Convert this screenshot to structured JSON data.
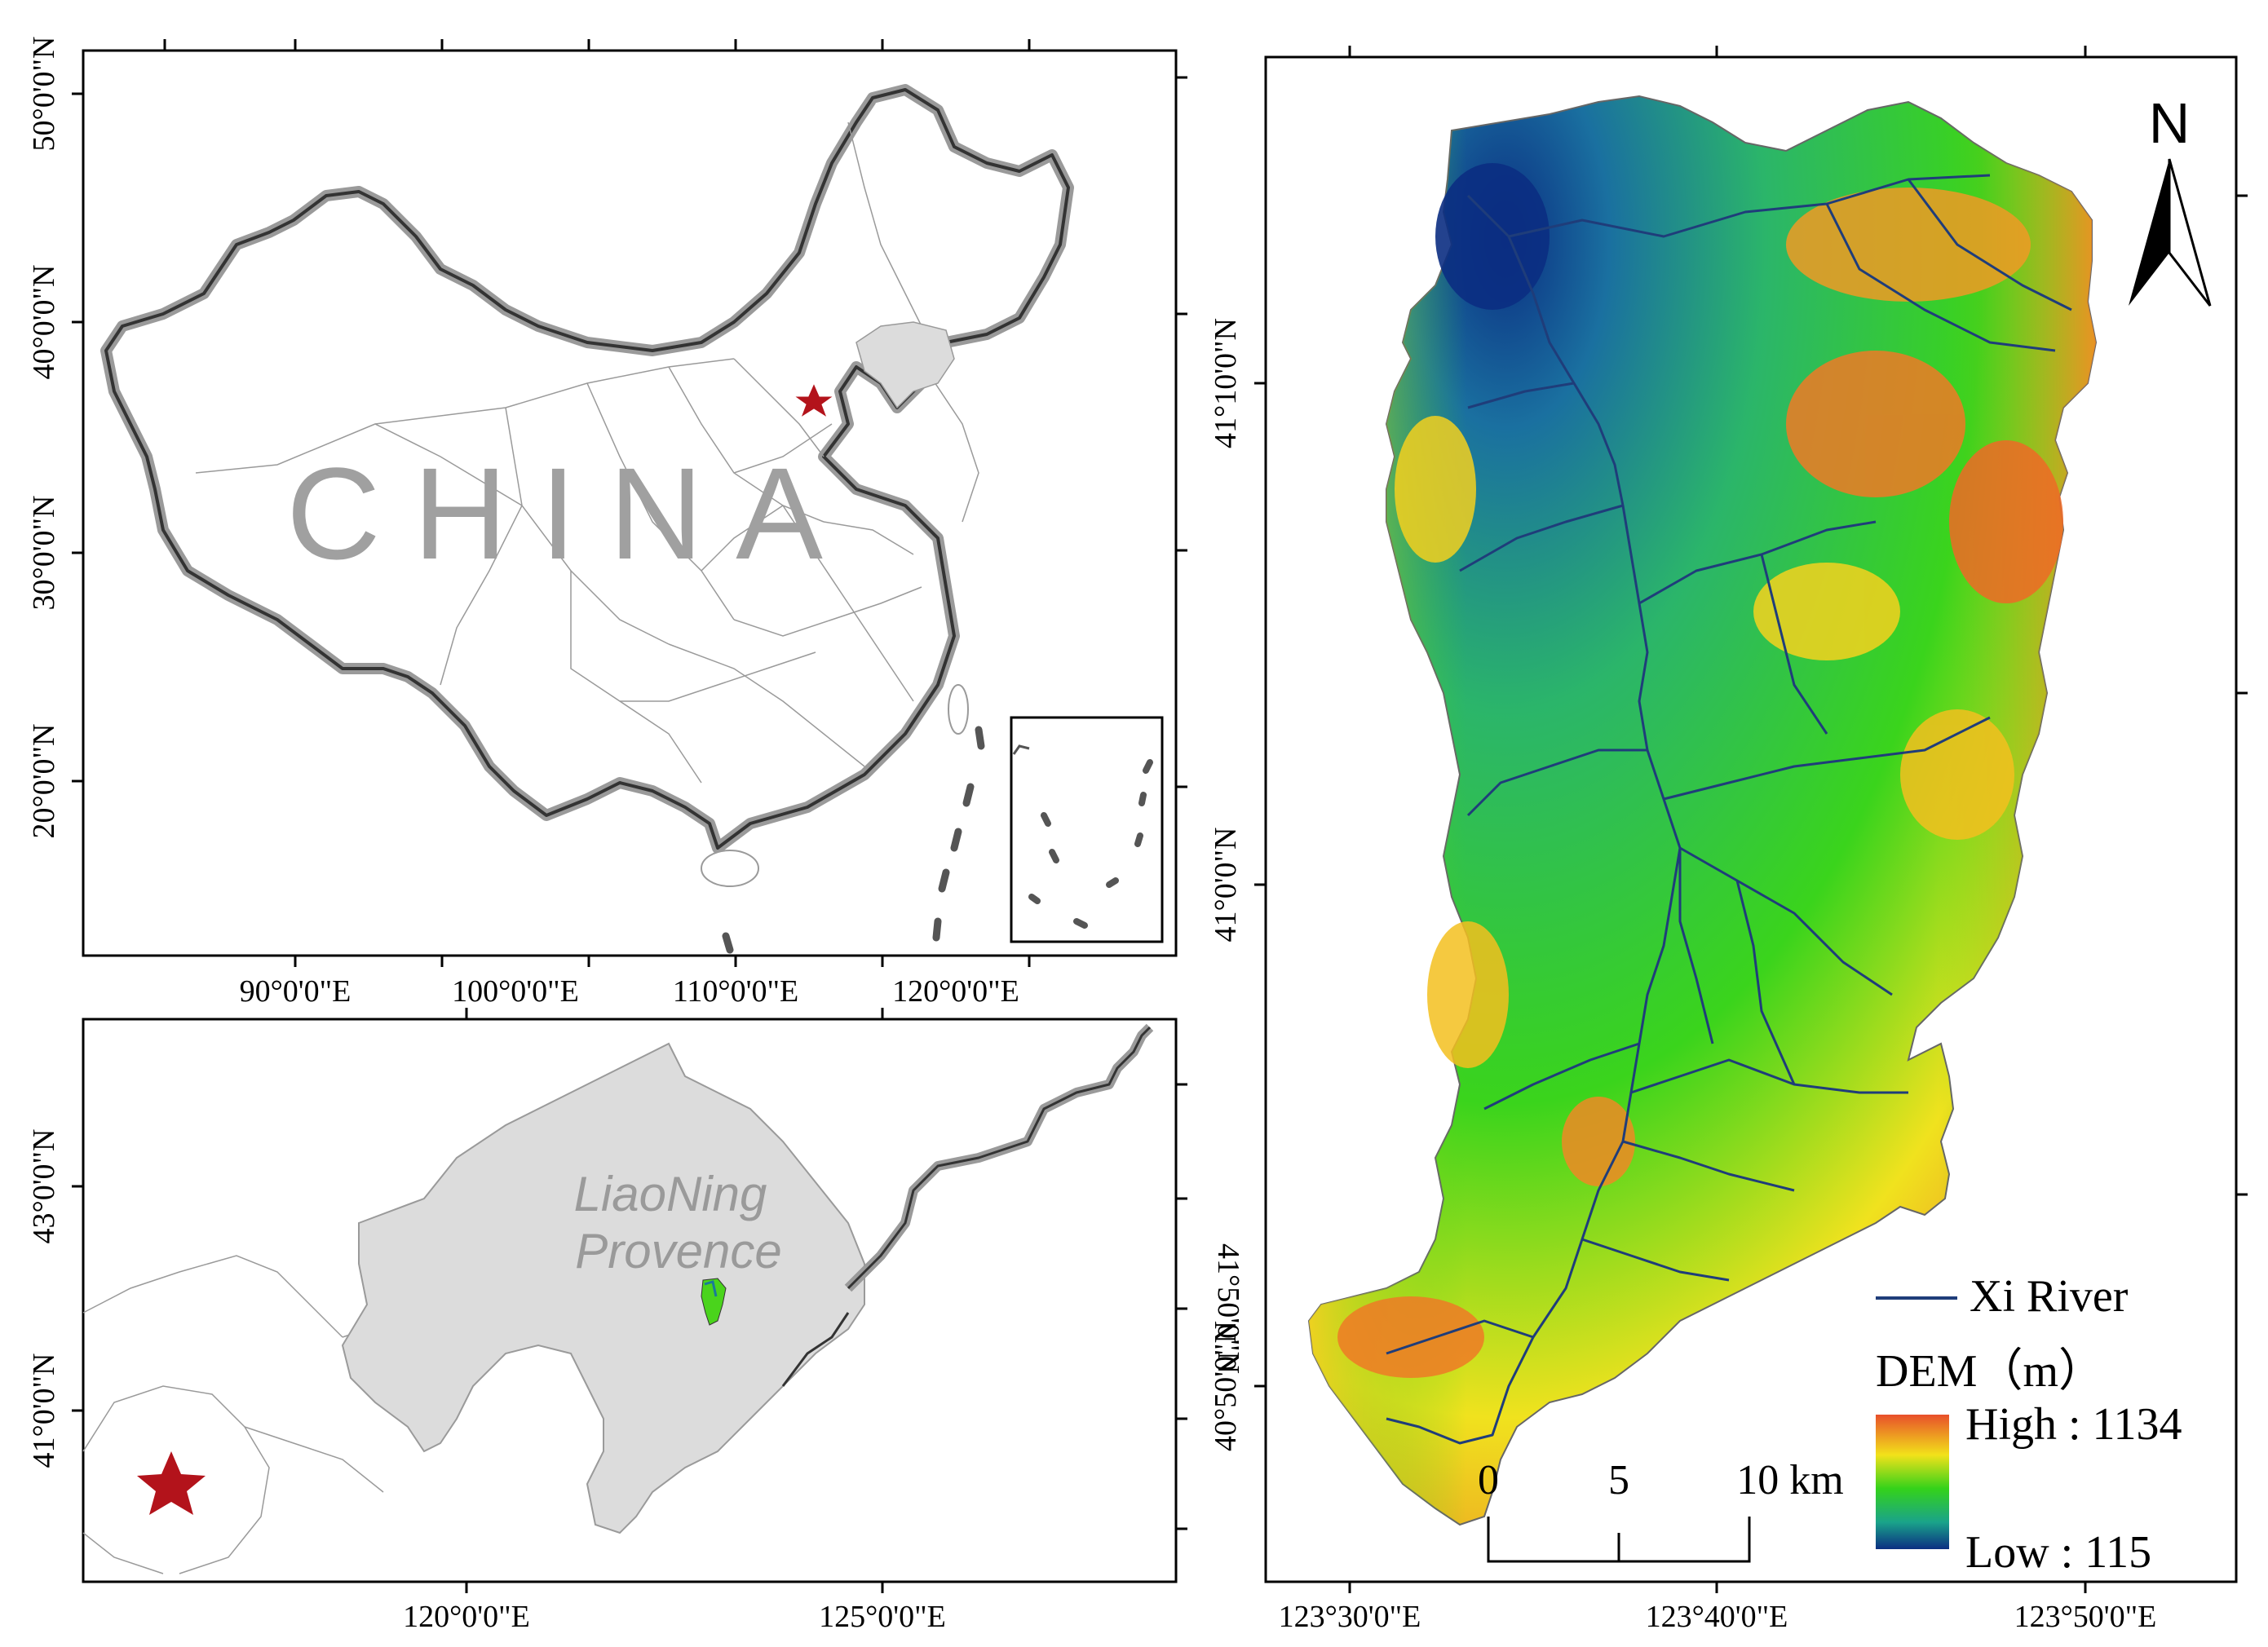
{
  "china_map": {
    "country_label": "CHINA",
    "lat_ticks": [
      "50°0'0\"N",
      "40°0'0\"N",
      "30°0'0\"N",
      "20°0'0\"N"
    ],
    "lon_ticks": [
      "90°0'0\"E",
      "100°0'0\"E",
      "110°0'0\"E",
      "120°0'0\"E"
    ]
  },
  "province_map": {
    "province_label_line1": "LiaoNing",
    "province_label_line2": "Provence",
    "lat_ticks": [
      "43°0'0\"N",
      "41°0'0\"N"
    ],
    "lat_ticks_right": [
      "41°50'0\"N"
    ],
    "lon_ticks": [
      "120°0'0\"E",
      "125°0'0\"E"
    ]
  },
  "basin_map": {
    "lat_ticks": [
      "41°10'0\"N",
      "41°0'0\"N",
      "40°50'0\"N"
    ],
    "lon_ticks": [
      "123°30'0\"E",
      "123°40'0\"E",
      "123°50'0\"E"
    ],
    "north_label": "N",
    "legend": {
      "river_label": "Xi River",
      "dem_title": "DEM（m）",
      "high_label": "High : 1134",
      "low_label": "Low : 115"
    },
    "scale_bar": {
      "labels": [
        "0",
        "5",
        "10 km"
      ]
    }
  },
  "colors": {
    "star": "#b3131b",
    "province_fill": "#dcdcdc",
    "china_label": "#a0a0a0",
    "river": "#1f3d7a",
    "dem_high": "#e8502a",
    "dem_mid_high": "#f2e21a",
    "dem_mid": "#34d21a",
    "dem_mid_low": "#1aa38a",
    "dem_low": "#0b2e82"
  }
}
